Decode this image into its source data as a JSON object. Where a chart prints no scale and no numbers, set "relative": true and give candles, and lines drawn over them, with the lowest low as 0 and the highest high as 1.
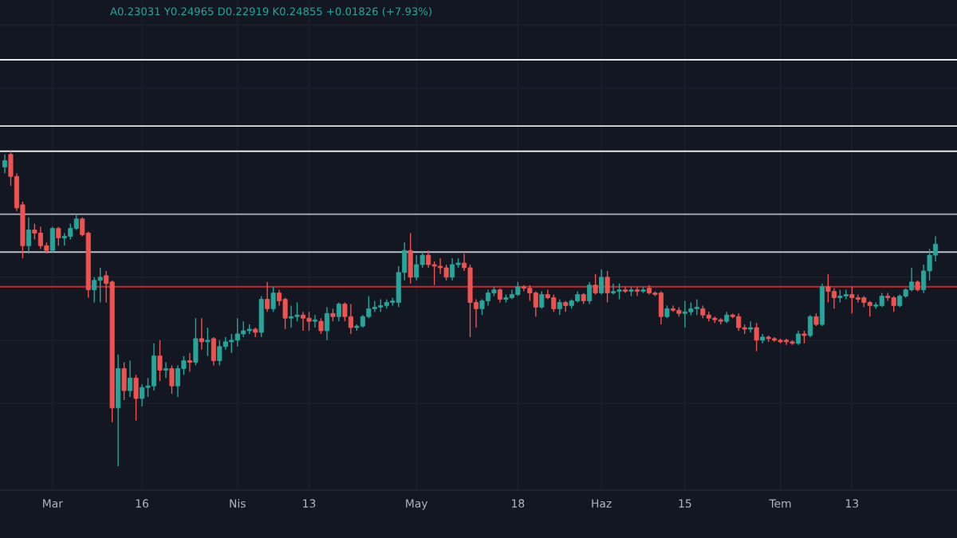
{
  "chart_data": {
    "type": "candlestick",
    "relative": true,
    "grid": true,
    "annotations": [
      "A0.23031 Y0.24965 D0.22919 K0.24855 +0.01826 (+7.93%)"
    ],
    "categories": [
      null,
      null,
      null,
      null,
      null,
      null,
      null,
      null,
      "Mar",
      null,
      null,
      null,
      null,
      null,
      null,
      null,
      null,
      null,
      null,
      null,
      null,
      null,
      null,
      "16",
      null,
      null,
      null,
      null,
      null,
      null,
      null,
      null,
      null,
      null,
      null,
      null,
      null,
      null,
      null,
      "Nis",
      null,
      null,
      null,
      null,
      null,
      null,
      null,
      null,
      null,
      null,
      null,
      "13",
      null,
      null,
      null,
      null,
      null,
      null,
      null,
      null,
      null,
      null,
      null,
      null,
      null,
      null,
      null,
      null,
      null,
      "May",
      null,
      null,
      null,
      null,
      null,
      null,
      null,
      null,
      null,
      null,
      null,
      null,
      null,
      null,
      null,
      null,
      "18",
      null,
      null,
      null,
      null,
      null,
      null,
      null,
      null,
      null,
      null,
      null,
      null,
      null,
      "Haz",
      null,
      null,
      null,
      null,
      null,
      null,
      null,
      null,
      null,
      null,
      null,
      null,
      null,
      "15",
      null,
      null,
      null,
      null,
      null,
      null,
      null,
      null,
      null,
      null,
      null,
      null,
      null,
      null,
      null,
      "Tem",
      null,
      null,
      null,
      null,
      null,
      null,
      null,
      null,
      null,
      null,
      null,
      "13",
      null,
      null,
      null,
      null,
      null,
      null,
      null,
      null,
      null,
      null,
      null,
      null,
      null,
      null
    ],
    "ohlc": [
      [
        0.95,
        0.99,
        0.93,
        0.97
      ],
      [
        0.99,
        1.0,
        0.89,
        0.92
      ],
      [
        0.92,
        0.93,
        0.81,
        0.82
      ],
      [
        0.83,
        0.84,
        0.66,
        0.7
      ],
      [
        0.7,
        0.79,
        0.675,
        0.75
      ],
      [
        0.75,
        0.77,
        0.72,
        0.74
      ],
      [
        0.74,
        0.76,
        0.69,
        0.7
      ],
      [
        0.7,
        0.71,
        0.675,
        0.685
      ],
      [
        0.685,
        0.76,
        0.68,
        0.755
      ],
      [
        0.755,
        0.76,
        0.7,
        0.725
      ],
      [
        0.725,
        0.74,
        0.7,
        0.73
      ],
      [
        0.73,
        0.77,
        0.72,
        0.755
      ],
      [
        0.755,
        0.8,
        0.75,
        0.785
      ],
      [
        0.785,
        0.79,
        0.73,
        0.735
      ],
      [
        0.74,
        0.745,
        0.535,
        0.56
      ],
      [
        0.56,
        0.6,
        0.52,
        0.59
      ],
      [
        0.59,
        0.63,
        0.52,
        0.6
      ],
      [
        0.605,
        0.62,
        0.52,
        0.58
      ],
      [
        0.585,
        0.59,
        0.14,
        0.185
      ],
      [
        0.185,
        0.355,
        0.0,
        0.31
      ],
      [
        0.31,
        0.33,
        0.21,
        0.24
      ],
      [
        0.24,
        0.335,
        0.22,
        0.28
      ],
      [
        0.28,
        0.29,
        0.145,
        0.215
      ],
      [
        0.215,
        0.26,
        0.19,
        0.25
      ],
      [
        0.25,
        0.28,
        0.22,
        0.255
      ],
      [
        0.255,
        0.39,
        0.24,
        0.35
      ],
      [
        0.35,
        0.4,
        0.27,
        0.305
      ],
      [
        0.305,
        0.33,
        0.28,
        0.31
      ],
      [
        0.31,
        0.32,
        0.23,
        0.255
      ],
      [
        0.255,
        0.32,
        0.22,
        0.31
      ],
      [
        0.31,
        0.35,
        0.29,
        0.335
      ],
      [
        0.335,
        0.36,
        0.3,
        0.33
      ],
      [
        0.33,
        0.47,
        0.32,
        0.405
      ],
      [
        0.405,
        0.47,
        0.37,
        0.395
      ],
      [
        0.395,
        0.44,
        0.35,
        0.4
      ],
      [
        0.405,
        0.41,
        0.32,
        0.335
      ],
      [
        0.335,
        0.4,
        0.32,
        0.38
      ],
      [
        0.38,
        0.41,
        0.37,
        0.395
      ],
      [
        0.395,
        0.42,
        0.36,
        0.4
      ],
      [
        0.4,
        0.47,
        0.38,
        0.42
      ],
      [
        0.42,
        0.46,
        0.41,
        0.43
      ],
      [
        0.43,
        0.45,
        0.42,
        0.435
      ],
      [
        0.435,
        0.44,
        0.41,
        0.425
      ],
      [
        0.425,
        0.54,
        0.41,
        0.53
      ],
      [
        0.53,
        0.585,
        0.49,
        0.5
      ],
      [
        0.5,
        0.57,
        0.49,
        0.55
      ],
      [
        0.55,
        0.56,
        0.51,
        0.525
      ],
      [
        0.53,
        0.535,
        0.435,
        0.47
      ],
      [
        0.47,
        0.51,
        0.44,
        0.475
      ],
      [
        0.475,
        0.52,
        0.46,
        0.48
      ],
      [
        0.48,
        0.49,
        0.43,
        0.47
      ],
      [
        0.47,
        0.49,
        0.43,
        0.46
      ],
      [
        0.46,
        0.48,
        0.44,
        0.465
      ],
      [
        0.46,
        0.47,
        0.42,
        0.43
      ],
      [
        0.43,
        0.505,
        0.4,
        0.485
      ],
      [
        0.485,
        0.5,
        0.46,
        0.475
      ],
      [
        0.475,
        0.52,
        0.46,
        0.515
      ],
      [
        0.515,
        0.52,
        0.46,
        0.475
      ],
      [
        0.475,
        0.515,
        0.42,
        0.44
      ],
      [
        0.44,
        0.45,
        0.43,
        0.445
      ],
      [
        0.445,
        0.48,
        0.44,
        0.475
      ],
      [
        0.475,
        0.54,
        0.47,
        0.5
      ],
      [
        0.5,
        0.525,
        0.49,
        0.505
      ],
      [
        0.505,
        0.53,
        0.49,
        0.51
      ],
      [
        0.51,
        0.53,
        0.5,
        0.52
      ],
      [
        0.52,
        0.535,
        0.51,
        0.525
      ],
      [
        0.52,
        0.635,
        0.505,
        0.615
      ],
      [
        0.615,
        0.71,
        0.59,
        0.685
      ],
      [
        0.685,
        0.74,
        0.58,
        0.6
      ],
      [
        0.6,
        0.67,
        0.59,
        0.64
      ],
      [
        0.64,
        0.68,
        0.63,
        0.67
      ],
      [
        0.67,
        0.685,
        0.63,
        0.64
      ],
      [
        0.64,
        0.65,
        0.575,
        0.635
      ],
      [
        0.635,
        0.66,
        0.61,
        0.63
      ],
      [
        0.63,
        0.64,
        0.59,
        0.6
      ],
      [
        0.6,
        0.66,
        0.59,
        0.64
      ],
      [
        0.64,
        0.66,
        0.63,
        0.645
      ],
      [
        0.645,
        0.675,
        0.62,
        0.63
      ],
      [
        0.63,
        0.64,
        0.41,
        0.52
      ],
      [
        0.52,
        0.53,
        0.44,
        0.5
      ],
      [
        0.5,
        0.53,
        0.48,
        0.525
      ],
      [
        0.525,
        0.56,
        0.51,
        0.55
      ],
      [
        0.55,
        0.57,
        0.54,
        0.56
      ],
      [
        0.56,
        0.565,
        0.52,
        0.53
      ],
      [
        0.53,
        0.545,
        0.52,
        0.535
      ],
      [
        0.535,
        0.56,
        0.53,
        0.545
      ],
      [
        0.545,
        0.585,
        0.54,
        0.57
      ],
      [
        0.57,
        0.575,
        0.555,
        0.565
      ],
      [
        0.565,
        0.575,
        0.525,
        0.55
      ],
      [
        0.55,
        0.555,
        0.475,
        0.505
      ],
      [
        0.505,
        0.555,
        0.5,
        0.545
      ],
      [
        0.545,
        0.56,
        0.53,
        0.535
      ],
      [
        0.535,
        0.545,
        0.49,
        0.5
      ],
      [
        0.5,
        0.53,
        0.48,
        0.52
      ],
      [
        0.52,
        0.525,
        0.49,
        0.51
      ],
      [
        0.51,
        0.53,
        0.5,
        0.525
      ],
      [
        0.525,
        0.555,
        0.52,
        0.545
      ],
      [
        0.545,
        0.55,
        0.515,
        0.525
      ],
      [
        0.525,
        0.585,
        0.515,
        0.575
      ],
      [
        0.575,
        0.61,
        0.545,
        0.55
      ],
      [
        0.55,
        0.625,
        0.545,
        0.6
      ],
      [
        0.6,
        0.62,
        0.52,
        0.55
      ],
      [
        0.55,
        0.58,
        0.545,
        0.555
      ],
      [
        0.555,
        0.58,
        0.53,
        0.56
      ],
      [
        0.56,
        0.57,
        0.55,
        0.555
      ],
      [
        0.555,
        0.57,
        0.54,
        0.56
      ],
      [
        0.56,
        0.57,
        0.54,
        0.555
      ],
      [
        0.555,
        0.57,
        0.55,
        0.56
      ],
      [
        0.565,
        0.575,
        0.545,
        0.55
      ],
      [
        0.55,
        0.555,
        0.54,
        0.545
      ],
      [
        0.55,
        0.555,
        0.45,
        0.475
      ],
      [
        0.475,
        0.51,
        0.47,
        0.5
      ],
      [
        0.5,
        0.51,
        0.49,
        0.495
      ],
      [
        0.495,
        0.505,
        0.475,
        0.485
      ],
      [
        0.485,
        0.525,
        0.44,
        0.49
      ],
      [
        0.49,
        0.52,
        0.48,
        0.5
      ],
      [
        0.5,
        0.53,
        0.48,
        0.505
      ],
      [
        0.5,
        0.51,
        0.47,
        0.48
      ],
      [
        0.48,
        0.49,
        0.46,
        0.47
      ],
      [
        0.47,
        0.475,
        0.455,
        0.465
      ],
      [
        0.465,
        0.47,
        0.45,
        0.46
      ],
      [
        0.46,
        0.49,
        0.455,
        0.48
      ],
      [
        0.48,
        0.485,
        0.47,
        0.475
      ],
      [
        0.475,
        0.485,
        0.43,
        0.44
      ],
      [
        0.44,
        0.45,
        0.42,
        0.435
      ],
      [
        0.435,
        0.46,
        0.425,
        0.44
      ],
      [
        0.44,
        0.455,
        0.365,
        0.4
      ],
      [
        0.4,
        0.42,
        0.39,
        0.41
      ],
      [
        0.41,
        0.415,
        0.395,
        0.405
      ],
      [
        0.405,
        0.41,
        0.395,
        0.4
      ],
      [
        0.4,
        0.405,
        0.39,
        0.395
      ],
      [
        0.4,
        0.405,
        0.385,
        0.395
      ],
      [
        0.395,
        0.4,
        0.385,
        0.39
      ],
      [
        0.39,
        0.43,
        0.385,
        0.42
      ],
      [
        0.42,
        0.43,
        0.39,
        0.415
      ],
      [
        0.415,
        0.48,
        0.41,
        0.475
      ],
      [
        0.475,
        0.485,
        0.445,
        0.45
      ],
      [
        0.45,
        0.58,
        0.445,
        0.57
      ],
      [
        0.57,
        0.61,
        0.52,
        0.555
      ],
      [
        0.555,
        0.565,
        0.5,
        0.535
      ],
      [
        0.535,
        0.56,
        0.52,
        0.54
      ],
      [
        0.54,
        0.56,
        0.53,
        0.545
      ],
      [
        0.545,
        0.57,
        0.485,
        0.535
      ],
      [
        0.535,
        0.545,
        0.52,
        0.53
      ],
      [
        0.535,
        0.54,
        0.505,
        0.52
      ],
      [
        0.52,
        0.525,
        0.475,
        0.51
      ],
      [
        0.508,
        0.52,
        0.5,
        0.512
      ],
      [
        0.51,
        0.55,
        0.505,
        0.54
      ],
      [
        0.54,
        0.55,
        0.525,
        0.535
      ],
      [
        0.535,
        0.54,
        0.49,
        0.51
      ],
      [
        0.51,
        0.545,
        0.505,
        0.54
      ],
      [
        0.54,
        0.565,
        0.535,
        0.56
      ],
      [
        0.56,
        0.63,
        0.555,
        0.585
      ],
      [
        0.585,
        0.59,
        0.555,
        0.56
      ],
      [
        0.56,
        0.64,
        0.55,
        0.62
      ],
      [
        0.62,
        0.69,
        0.59,
        0.67
      ],
      [
        0.67,
        0.73,
        0.65,
        0.705
      ]
    ],
    "ref_lines": [
      {
        "axis": "y",
        "value": 1.29,
        "color": "#e6e6e6"
      },
      {
        "axis": "y",
        "value": 1.08,
        "color": "#e6e6e6"
      },
      {
        "axis": "y",
        "value": 1.0,
        "color": "#e6e6e6"
      },
      {
        "axis": "y",
        "value": 0.8,
        "color": "#9aa3ad"
      },
      {
        "axis": "y",
        "value": 0.68,
        "color": "#b8bec6"
      },
      {
        "axis": "y",
        "value": 0.57,
        "color": "#c62828"
      }
    ]
  }
}
